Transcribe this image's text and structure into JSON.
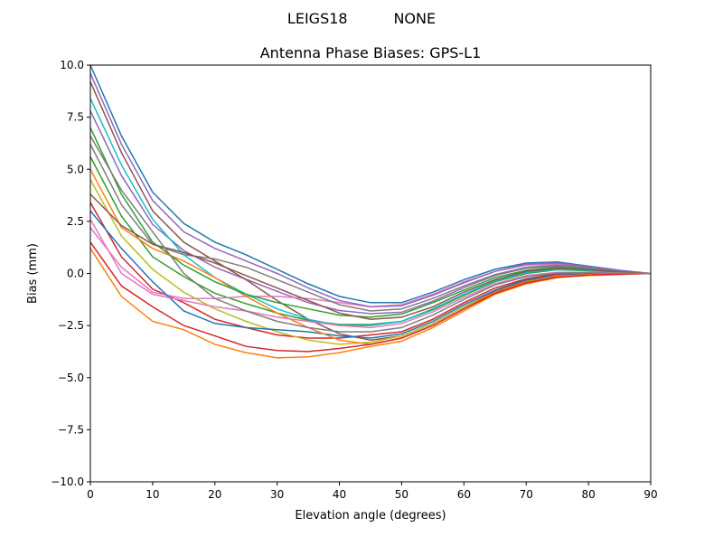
{
  "chart_data": {
    "type": "line",
    "suptitle": "LEIGS18          NONE",
    "title": "Antenna Phase Biases: GPS-L1",
    "xlabel": "Elevation angle (degrees)",
    "ylabel": "Bias (mm)",
    "xlim": [
      0,
      90
    ],
    "ylim": [
      -10,
      10
    ],
    "xticks": [
      0,
      10,
      20,
      30,
      40,
      50,
      60,
      70,
      80,
      90
    ],
    "xtick_labels": [
      "0",
      "10",
      "20",
      "30",
      "40",
      "50",
      "60",
      "70",
      "80",
      "90"
    ],
    "yticks": [
      -10,
      -7.5,
      -5,
      -2.5,
      0,
      2.5,
      5,
      7.5,
      10
    ],
    "ytick_labels": [
      "−10.0",
      "−7.5",
      "−5.0",
      "−2.5",
      "0.0",
      "2.5",
      "5.0",
      "7.5",
      "10.0"
    ],
    "grid": false,
    "legend": "none",
    "colors": [
      "#1f77b4",
      "#ff7f0e",
      "#2ca02c",
      "#d62728",
      "#9467bd",
      "#8c564b",
      "#e377c2",
      "#7f7f7f",
      "#bcbd22",
      "#17becf"
    ],
    "x": [
      0,
      5,
      10,
      15,
      20,
      25,
      30,
      35,
      40,
      45,
      50,
      55,
      60,
      65,
      70,
      75,
      80,
      85,
      90
    ],
    "series": [
      {
        "values": [
          10,
          6.6,
          3.9,
          2.4,
          1.5,
          0.9,
          0.2,
          -0.5,
          -1.1,
          -1.4,
          -1.4,
          -0.9,
          -0.3,
          0.2,
          0.5,
          0.55,
          0.35,
          0.15,
          0
        ]
      },
      {
        "values": [
          1.2,
          -1.1,
          -2.3,
          -2.7,
          -3.4,
          -3.8,
          -4.05,
          -4.0,
          -3.8,
          -3.5,
          -3.25,
          -2.6,
          -1.8,
          -1.0,
          -0.5,
          -0.2,
          -0.1,
          -0.05,
          0
        ]
      },
      {
        "values": [
          5.6,
          2.75,
          0.8,
          -0.15,
          -0.95,
          -1.45,
          -1.9,
          -2.25,
          -2.45,
          -2.45,
          -2.3,
          -1.75,
          -1.05,
          -0.4,
          0.0,
          0.18,
          0.13,
          0.05,
          0
        ]
      },
      {
        "values": [
          3.4,
          0.8,
          -0.75,
          -1.4,
          -2.2,
          -2.6,
          -2.95,
          -3.1,
          -3.1,
          -2.95,
          -2.8,
          -2.2,
          -1.4,
          -0.7,
          -0.25,
          -0.01,
          0.01,
          0,
          0
        ]
      },
      {
        "values": [
          7.8,
          4.7,
          2.35,
          1.1,
          0.3,
          -0.28,
          -0.86,
          -1.4,
          -1.78,
          -1.93,
          -1.86,
          -1.33,
          -0.68,
          -0.1,
          0.25,
          0.36,
          0.24,
          0.1,
          0
        ]
      },
      {
        "values": [
          9.2,
          5.8,
          3.0,
          1.5,
          0.6,
          -0.3,
          -1.3,
          -2.2,
          -2.9,
          -3.2,
          -3.0,
          -2.4,
          -1.6,
          -0.85,
          -0.35,
          -0.1,
          -0.05,
          0,
          0
        ]
      },
      {
        "values": [
          2.2,
          0.3,
          -0.9,
          -1.2,
          -1.2,
          -1.1,
          -1.1,
          -1.2,
          -1.4,
          -1.6,
          -1.5,
          -1.0,
          -0.4,
          0.1,
          0.4,
          0.45,
          0.3,
          0.12,
          0
        ]
      },
      {
        "values": [
          6.2,
          3.3,
          1.4,
          0.9,
          0.7,
          0.3,
          -0.3,
          -0.9,
          -1.5,
          -1.8,
          -1.7,
          -1.2,
          -0.6,
          -0.05,
          0.3,
          0.4,
          0.28,
          0.1,
          0
        ]
      },
      {
        "values": [
          4.5,
          1.8,
          0.2,
          -0.9,
          -1.7,
          -2.3,
          -2.8,
          -3.2,
          -3.4,
          -3.3,
          -3.0,
          -2.4,
          -1.6,
          -0.9,
          -0.4,
          -0.15,
          -0.07,
          -0.02,
          0
        ]
      },
      {
        "values": [
          8.4,
          5.2,
          2.6,
          0.9,
          -0.2,
          -1.0,
          -1.7,
          -2.2,
          -2.5,
          -2.5,
          -2.3,
          -1.7,
          -1.0,
          -0.35,
          0.05,
          0.2,
          0.15,
          0.06,
          0
        ]
      },
      {
        "values": [
          3.0,
          1.2,
          -0.4,
          -1.8,
          -2.4,
          -2.6,
          -2.7,
          -2.8,
          -3.0,
          -3.1,
          -2.9,
          -2.3,
          -1.5,
          -0.8,
          -0.3,
          -0.08,
          -0.03,
          0,
          0
        ]
      },
      {
        "values": [
          5.0,
          2.2,
          1.2,
          0.6,
          -0.2,
          -1.1,
          -1.9,
          -2.6,
          -3.2,
          -3.4,
          -3.1,
          -2.5,
          -1.7,
          -0.9,
          -0.4,
          -0.12,
          -0.05,
          0,
          0
        ]
      },
      {
        "values": [
          7.0,
          3.8,
          1.5,
          0.4,
          -0.4,
          -1.0,
          -1.4,
          -1.7,
          -2.0,
          -2.1,
          -1.95,
          -1.4,
          -0.8,
          -0.2,
          0.15,
          0.3,
          0.2,
          0.08,
          0
        ]
      },
      {
        "values": [
          1.5,
          -0.6,
          -1.6,
          -2.5,
          -3.0,
          -3.5,
          -3.7,
          -3.75,
          -3.6,
          -3.4,
          -3.1,
          -2.5,
          -1.7,
          -0.95,
          -0.45,
          -0.18,
          -0.08,
          -0.03,
          0
        ]
      },
      {
        "values": [
          9.6,
          6.2,
          3.5,
          2.0,
          1.2,
          0.6,
          0.0,
          -0.7,
          -1.3,
          -1.6,
          -1.55,
          -1.05,
          -0.45,
          0.1,
          0.45,
          0.5,
          0.32,
          0.13,
          0
        ]
      },
      {
        "values": [
          3.8,
          2.3,
          1.4,
          1.0,
          0.5,
          -0.1,
          -0.7,
          -1.3,
          -1.9,
          -2.2,
          -2.1,
          -1.6,
          -0.9,
          -0.3,
          0.1,
          0.25,
          0.18,
          0.07,
          0
        ]
      },
      {
        "values": [
          2.6,
          0.0,
          -1.0,
          -1.3,
          -1.6,
          -1.8,
          -2.1,
          -2.3,
          -2.5,
          -2.6,
          -2.4,
          -1.85,
          -1.15,
          -0.5,
          -0.1,
          0.05,
          0.05,
          0.02,
          0
        ]
      },
      {
        "values": [
          6.6,
          4.0,
          2.0,
          0.0,
          -1.2,
          -1.8,
          -2.3,
          -2.6,
          -2.8,
          -2.8,
          -2.6,
          -2.0,
          -1.25,
          -0.55,
          -0.15,
          0.02,
          0.03,
          0.01,
          0
        ]
      }
    ]
  }
}
